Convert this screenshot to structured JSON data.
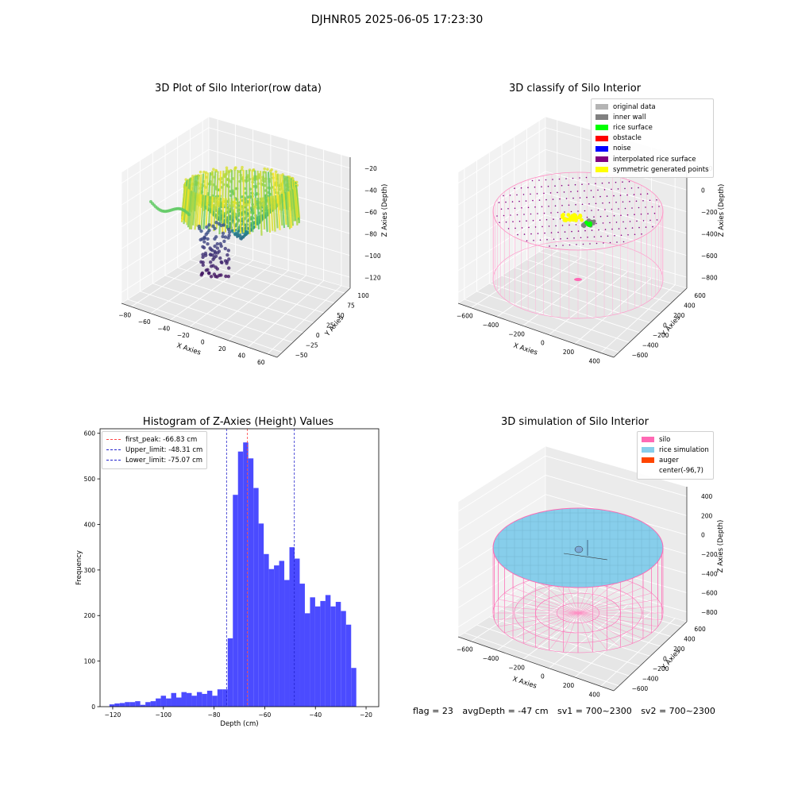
{
  "suptitle": "DJHNR05 2025-06-05 17:23:30",
  "footer": {
    "flag": "flag = 23",
    "avg": "avgDepth = -47 cm",
    "sv1": "sv1 = 700~2300",
    "sv2": "sv2 = 700~2300"
  },
  "chart_data": [
    {
      "type": "scatter",
      "dimension": "3d",
      "title": "3D Plot of Silo Interior(row data)",
      "xlabel": "X Axies",
      "ylabel": "Y Axies",
      "zlabel": "Z Axies (Depth)",
      "x_ticks": [
        "−80",
        "−60",
        "−40",
        "−20",
        "0",
        "20",
        "40",
        "60"
      ],
      "y_ticks": [
        "−50",
        "−25",
        "0",
        "25",
        "50",
        "75",
        "100"
      ],
      "z_ticks": [
        "−120",
        "−100",
        "−80",
        "−60",
        "−40",
        "−20"
      ],
      "colormap": "viridis"
    },
    {
      "type": "scatter",
      "dimension": "3d",
      "title": "3D classify of Silo Interior",
      "xlabel": "X Axies",
      "ylabel": "Y Axies",
      "zlabel": "Z Axies (Depth)",
      "x_ticks": [
        "−600",
        "−400",
        "−200",
        "0",
        "200",
        "400"
      ],
      "y_ticks": [
        "−600",
        "−400",
        "−200",
        "0",
        "200",
        "400",
        "600"
      ],
      "z_ticks": [
        "−800",
        "−600",
        "−400",
        "−200",
        "0",
        "200"
      ],
      "legend_position": "top-right",
      "legend": [
        {
          "label": "original data",
          "color": "#b4b4b4"
        },
        {
          "label": "inner wall",
          "color": "#808080"
        },
        {
          "label": "rice surface",
          "color": "#00ff00"
        },
        {
          "label": "obstacle",
          "color": "#ff0000"
        },
        {
          "label": "noise",
          "color": "#0000ff"
        },
        {
          "label": "interpolated rice surface",
          "color": "#800080"
        },
        {
          "label": "symmetric generated points",
          "color": "#ffff00"
        }
      ]
    },
    {
      "type": "bar",
      "title": "Histogram of Z-Axies (Height) Values",
      "xlabel": "Depth (cm)",
      "ylabel": "Frequency",
      "xlim": [
        -125,
        -15
      ],
      "ylim": [
        0,
        610
      ],
      "x_ticks": [
        -120,
        -100,
        -80,
        -60,
        -40,
        -20
      ],
      "x_tick_labels": [
        "−120",
        "−100",
        "−80",
        "−60",
        "−40",
        "−20"
      ],
      "y_ticks": [
        0,
        100,
        200,
        300,
        400,
        500,
        600
      ],
      "bar_color": "#4b4bff",
      "bins": {
        "start": -121.3,
        "width": 2.03,
        "counts": [
          5,
          7,
          8,
          10,
          10,
          12,
          4,
          10,
          12,
          18,
          24,
          18,
          30,
          20,
          32,
          30,
          24,
          32,
          28,
          35,
          24,
          38,
          38,
          150,
          465,
          560,
          580,
          545,
          480,
          402,
          335,
          302,
          310,
          320,
          278,
          350,
          325,
          270,
          205,
          240,
          220,
          232,
          245,
          220,
          230,
          210,
          180,
          85
        ]
      },
      "lines": [
        {
          "label": "first_peak: -66.83 cm",
          "x": -66.83,
          "color": "#ff4444"
        },
        {
          "label": "Upper_limit: -48.31 cm",
          "x": -48.31,
          "color": "#2222cc"
        },
        {
          "label": "Lower_limit: -75.07 cm",
          "x": -75.07,
          "color": "#2222cc"
        }
      ],
      "legend_position": "top-left"
    },
    {
      "type": "surface",
      "dimension": "3d",
      "title": "3D simulation of Silo Interior",
      "xlabel": "X Axies",
      "ylabel": "Y Axies",
      "zlabel": "Z Axies (Depth)",
      "x_ticks": [
        "−600",
        "−400",
        "−200",
        "0",
        "200",
        "400"
      ],
      "y_ticks": [
        "−600",
        "−400",
        "−200",
        "0",
        "200",
        "400",
        "600"
      ],
      "z_ticks": [
        "−800",
        "−600",
        "−400",
        "−200",
        "0",
        "200",
        "400"
      ],
      "legend_position": "top-right",
      "legend": [
        {
          "label": "silo",
          "color": "#ff69b4"
        },
        {
          "label": "rice simulation",
          "color": "#87ceeb"
        },
        {
          "label": "auger",
          "color": "#ff4500"
        },
        {
          "label": "center(-96,7)",
          "color": ""
        }
      ]
    }
  ]
}
